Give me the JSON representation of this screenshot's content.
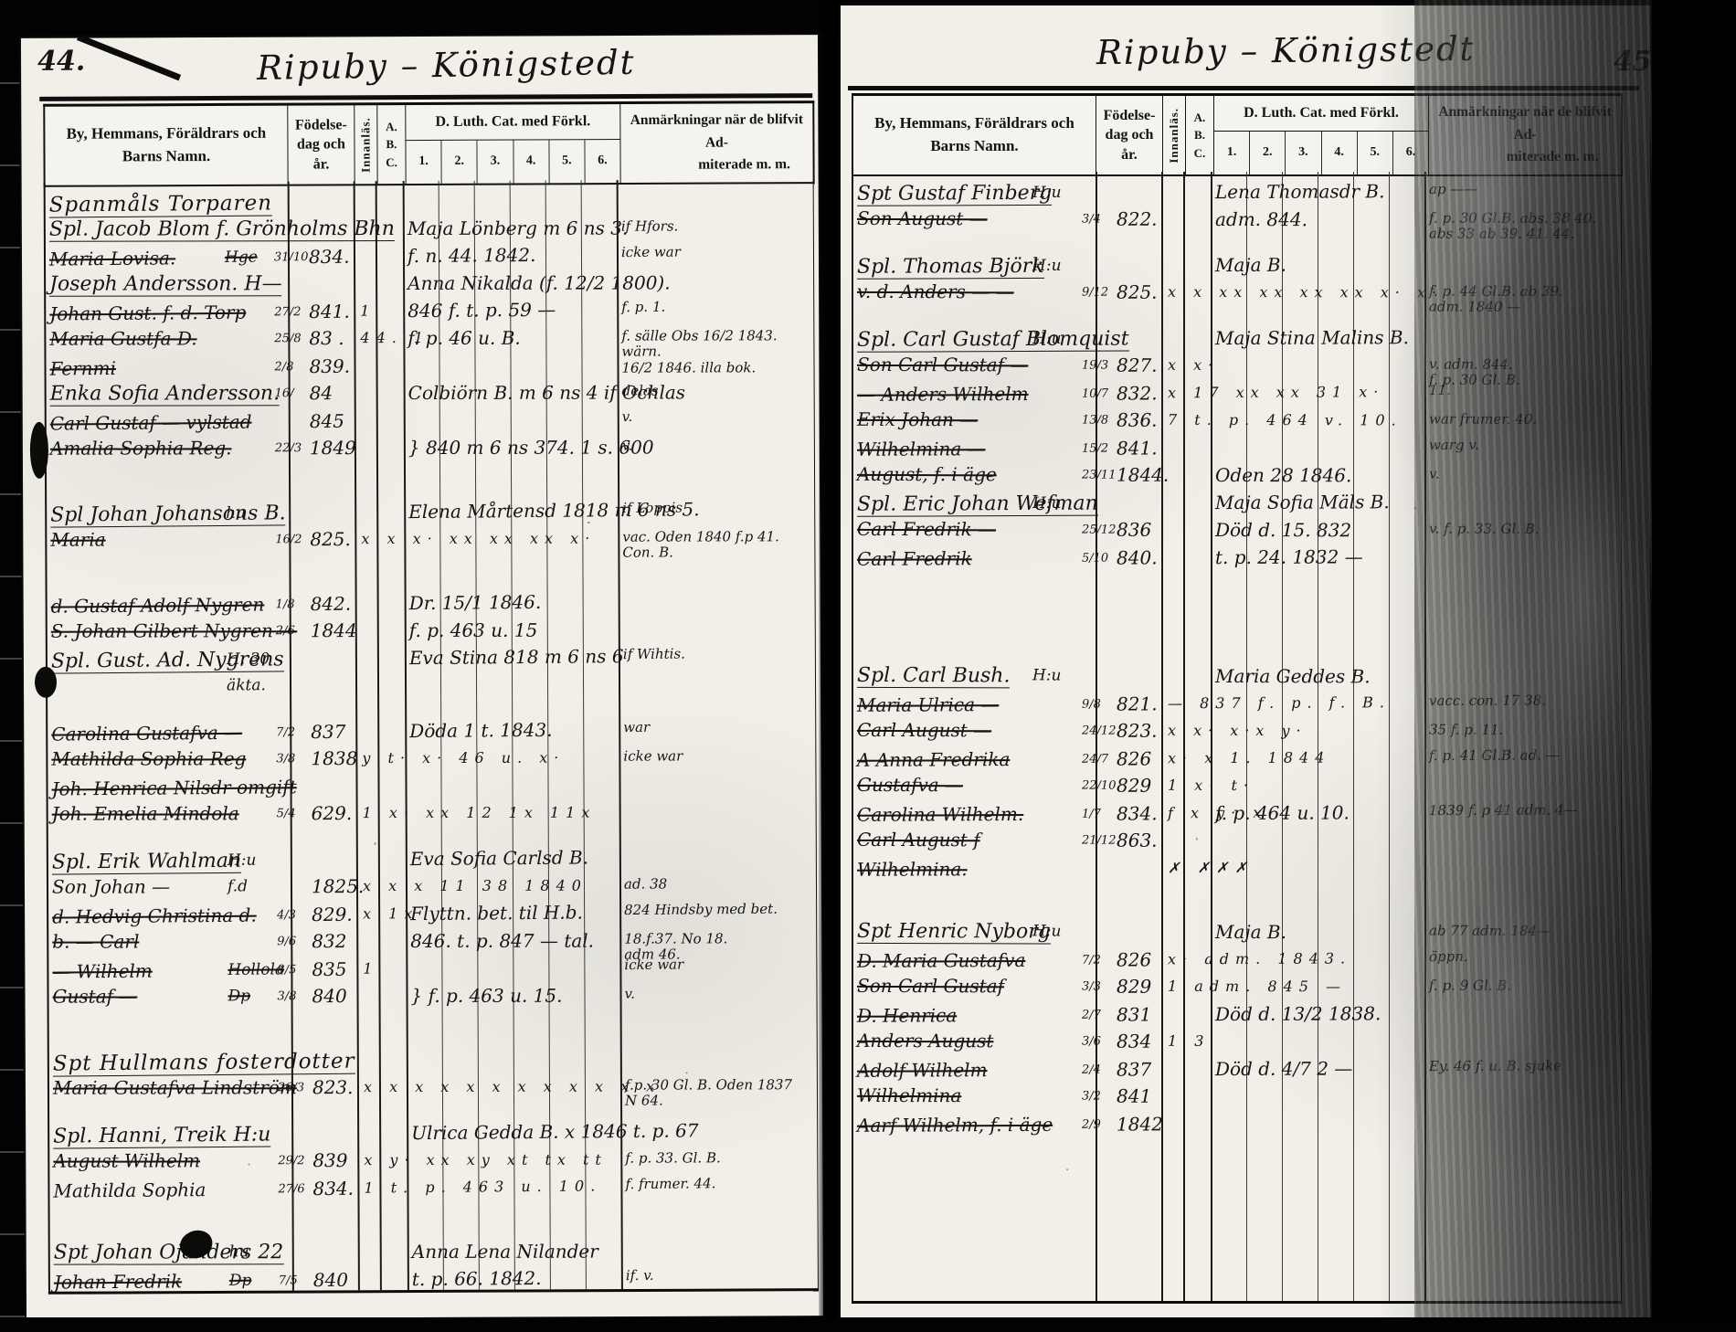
{
  "table_header": {
    "name1": "By, Hemmans, Föräldrars och",
    "name2": "Barns Namn.",
    "birth1": "Födelse-",
    "birth2": "dag och",
    "birth3": "år.",
    "innanlas": "Innanläs.",
    "abc": "A. B. C.",
    "cat": "D. Luth. Cat. med Förkl.",
    "cat_subs": [
      "1.",
      "2.",
      "3.",
      "4.",
      "5.",
      "6."
    ],
    "remarks1": "Anmärkningar när de blifvit Ad-",
    "remarks2": "miterade m. m."
  },
  "pages": {
    "left": {
      "number": "44.",
      "title": "Ripuby – Königstedt",
      "entries": [
        {
          "name": "Spanmåls Torparen",
          "cls": "h"
        },
        {
          "name": "Spl. Jacob Blom f. Grönholms Bhn",
          "cat": "Maja Lönberg m 6 ns 3.",
          "remarks": "if Hfors.",
          "cls": "u"
        },
        {
          "name": "Maria Lovisa.",
          "place": "Hge",
          "bday": "31/10",
          "byear": "834.",
          "cat": "f. n. 44. 1842.",
          "remarks": "icke war",
          "cls": "s"
        },
        {
          "name": "Joseph Andersson. H—",
          "cat": "Anna Nikalda (f. 12/2 1800).",
          "cls": "u"
        },
        {
          "name": "Johan Gust. f. d. Torp",
          "bday": "27/2",
          "byear": "841.",
          "marks": "1",
          "cat": "846 f. t. p. 59 —",
          "remarks": "f. p. 1.",
          "cls": "s"
        },
        {
          "name": "Maria Gustfa  D.",
          "bday": "25/8",
          "byear": "83 .",
          "marks": "44. 1",
          "cat": "f. p. 46  u. B.",
          "remarks": "f. sälle Obs 16/2 1843. wärn.\n16/2 1846. illa bok.",
          "cls": "s"
        },
        {
          "name": "Fernmi",
          "bday": "2/8",
          "byear": "839.",
          "cls": "s"
        },
        {
          "name": "Enka Sofia Andersson.",
          "bday": "16/",
          "byear": "84 ",
          "cat": "Colbiörn B. m 6 ns 4 if Ochlas",
          "remarks": "delas",
          "cls": "u"
        },
        {
          "name": "Carl Gustaf — vylstad",
          "byear": "845",
          "remarks": "v.",
          "cls": "s"
        },
        {
          "name": "Amalia Sophia Reg.",
          "bday": "22/3",
          "byear": "1849",
          "cat": "} 840 m 6 ns 374.  1 s. 600",
          "remarks": "v.",
          "cls": "s"
        },
        {
          "name": "Spl Johan Johansons B.",
          "place": "hu",
          "cat": "Elena Mårtensd 1818 m 6 ns 5.",
          "remarks": "if Loppis",
          "cls": "u",
          "gap": 2
        },
        {
          "name": "Maria",
          "bday": "16/2",
          "byear": "825.",
          "marks": "x x x· xx xx xx x·",
          "remarks": "vac. Oden 1840 f.p 41.\nCon. B.",
          "cls": "s"
        },
        {
          "name": "d. Gustaf Adolf Nygren",
          "bday": "1/8",
          "byear": "842.",
          "cat": "Dr. 15/1 1846.",
          "cls": "s",
          "gap": 2
        },
        {
          "name": "S. Johan Gilbert Nygren —",
          "bday": "2/6",
          "byear": "1844",
          "cat": "f. p. 463 u. 15",
          "cls": "s"
        },
        {
          "name": "Spl. Gust. Ad. Nygrens",
          "place": "H. 30",
          "cat": "Eva Stina 818 m 6 ns 6",
          "remarks": "if Wihtis.",
          "cls": "u"
        },
        {
          "place": "äkta."
        },
        {
          "name": "Carolina Gustafva —",
          "bday": "7/2",
          "byear": "837",
          "cat": "Döda 1 t. 1843.",
          "remarks": "war",
          "cls": "s",
          "gap": 1
        },
        {
          "name": "Mathilda Sophia Reg",
          "bday": "3/8",
          "byear": "1838",
          "marks": "y t· x· 46  u. x·",
          "remarks": "icke war",
          "cls": "s"
        },
        {
          "name": "Joh. Henrica Nilsdr omgift",
          "cls": "s"
        },
        {
          "name": "Joh. Emelia Mindola",
          "bday": "5/4",
          "byear": "629.",
          "marks": "1 x· xx 12 1x 11x",
          "cls": "s"
        },
        {
          "name": "Spl. Erik Wahlman",
          "place": "H:u",
          "cat": "Eva Sofia Carlsd B.",
          "cls": "u",
          "gap": 1
        },
        {
          "name": "Son Johan  —",
          "place": "f.d",
          "byear": "1825.",
          "marks": "x x x 11 38 1840",
          "remarks": "ad. 38"
        },
        {
          "name": "d. Hedvig Christina d.",
          "bday": "4/3",
          "byear": "829.",
          "marks": "x 1x",
          "cat": "Flyttn. bet. til H.b.",
          "remarks": "824 Hindsby med bet.",
          "cls": "s"
        },
        {
          "name": "b. — Carl",
          "bday": "9/6",
          "byear": "832",
          "cat": "846.  t. p.  847 — tal.",
          "remarks": "18.f.37. No 18.\nadm 46.",
          "cls": "s"
        },
        {
          "name": "—  Wilhelm",
          "place": "Hollola",
          "bday": "8/5",
          "byear": "835",
          "marks": "1",
          "remarks": "icke war",
          "cls": "s"
        },
        {
          "name": "Gustaf —",
          "place": "Dp",
          "bday": "3/8",
          "byear": "840",
          "cat": "} f. p. 463 u. 15.",
          "remarks": "v.",
          "cls": "s"
        },
        {
          "name": "Spt Hullmans fosterdotter",
          "cls": "h",
          "gap": 2
        },
        {
          "name": "Maria Gustafva Lindström",
          "bday": "26/3",
          "byear": "823.",
          "marks": "x x x x x x x x x x x x",
          "remarks": "f.p. 30 Gl. B. Oden 1837\nN 64.",
          "cls": "s"
        },
        {
          "name": "Spl. Hanni, Treik H:u",
          "cat": "Ulrica Gedda B.  x   1846 t. p. 67",
          "cls": "u",
          "gap": 1
        },
        {
          "name": "August Wilhelm",
          "bday": "29/2",
          "byear": "839",
          "marks": "x y· xx xy xt tx tt",
          "remarks": "f. p. 33. Gl. B.",
          "cls": "s"
        },
        {
          "name": "Mathilda Sophia",
          "bday": "27/6",
          "byear": "834.",
          "marks": "1  t. p. 463 u. 10.",
          "remarks": "f. frumer. 44."
        },
        {
          "name": "Spt Johan  Ojanders  22",
          "place": "hu",
          "cat": "Anna Lena Nilander",
          "cls": "u",
          "gap": 2
        },
        {
          "name": "Johan Fredrik",
          "place": "Dp",
          "bday": "7/5",
          "byear": "840",
          "cat": "t. p. 66.  1842.",
          "remarks": "if. v.",
          "cls": "s"
        }
      ]
    },
    "right": {
      "number": "45",
      "title": "Ripuby – Königstedt",
      "entries": [
        {
          "name": "Spt Gustaf Finberg",
          "place": "H:u",
          "cat": "Lena Thomasdr B.",
          "remarks": "ap ——",
          "cls": "u"
        },
        {
          "name": "Son August  —",
          "bday": "3/4",
          "byear": "822.",
          "cat": "adm. 844.",
          "remarks": "f. p. 30 Gl.B. abs. 38 40.\nabs 33 ab 39. 41. 44.",
          "cls": "s"
        },
        {
          "name": "Spl. Thomas Björk",
          "place": "H:u",
          "cat": "Maja B.",
          "cls": "u",
          "gap": 1
        },
        {
          "name": "v. d. Anders — —",
          "bday": "9/12",
          "byear": "825.",
          "marks": "x x xx xx xx xx x· x·",
          "remarks": "f. p. 44 Gl.B. ab 39.\nadm. 1840 —",
          "cls": "s"
        },
        {
          "name": "Spl. Carl Gustaf Blomquist",
          "place": "H:u",
          "cat": "Maja Stina Malins B.",
          "cls": "u",
          "gap": 1
        },
        {
          "name": "Son Carl Gustaf —",
          "bday": "19/3",
          "byear": "827.",
          "marks": "x x·",
          "remarks": "v.   adm. 844.\nf. p. 30 Gl. B.",
          "cls": "s"
        },
        {
          "name": "—  Anders Wilhelm",
          "bday": "10/7",
          "byear": "832.",
          "marks": "x 17 xx xx 31 x·",
          "remarks": "11.",
          "cls": "s"
        },
        {
          "name": "Erix Johan  —",
          "bday": "13/8",
          "byear": "836.",
          "marks": "7 t. p. 464 v. 10.",
          "remarks": "war frumer. 40.",
          "cls": "s"
        },
        {
          "name": "Wilhelmina  —",
          "bday": "15/2",
          "byear": "841.",
          "remarks": "warg   v.",
          "cls": "s"
        },
        {
          "name": "August, f. i äge",
          "bday": "23/11",
          "byear": "1844.",
          "cat": "Oden 28 1846.",
          "remarks": "v.",
          "cls": "s"
        },
        {
          "name": "Spl. Eric Johan Wefman",
          "place": "H:u",
          "cat": "Maja Sofia Mäls B.",
          "cls": "u"
        },
        {
          "name": "Carl Fredrik  —",
          "bday": "25/12",
          "byear": "836",
          "cat": "Död d. 15.  832",
          "remarks": "v. f. p. 33. Gl. B.",
          "cls": "s"
        },
        {
          "name": "Carl Fredrik",
          "bday": "5/10",
          "byear": "840.",
          "cat": "t. p. 24.   1832 —",
          "cls": "s"
        },
        {
          "name": "Spl. Carl Bush.",
          "place": "H:u",
          "cat": "Maria Geddes B.",
          "cls": "u",
          "gap": 5
        },
        {
          "name": "Maria Ulrica  —",
          "bday": "9/8",
          "byear": "821.",
          "marks": "—  837 f. p. f. B.",
          "remarks": "vacc. con. 17 38.",
          "cls": "s"
        },
        {
          "name": "Carl August  —",
          "bday": "24/12",
          "byear": "823.",
          "marks": "x x· x·x y·",
          "remarks": "35 f. p. 11.",
          "cls": "s"
        },
        {
          "name": "A Anna Fredrika",
          "bday": "24/7",
          "byear": "826",
          "marks": "x· x 1.  1844",
          "remarks": "f. p. 41 Gl.B. ad. —",
          "cls": "s"
        },
        {
          "name": "Gustafva  —",
          "bday": "22/10",
          "byear": "829",
          "marks": "1 x· t·",
          "cls": "s"
        },
        {
          "name": "Carolina Wilhelm.",
          "bday": "1/7",
          "byear": "834.",
          "marks": "f x y· x·",
          "cat": "f. p. 464 u. 10.",
          "remarks": "1839 f. p 41 adm. 4—",
          "cls": "s"
        },
        {
          "name": "Carl August f",
          "bday": "21/12",
          "byear": "863.",
          "cls": "s"
        },
        {
          "name": "Wilhelmina.",
          "marks": "✗ ✗✗✗",
          "cls": "s"
        },
        {
          "name": "Spt Henric  Nyborg",
          "place": "H:u",
          "cat": "Maja B.",
          "remarks": "ab 77 adm. 184—",
          "cls": "u",
          "gap": 2
        },
        {
          "name": "D. Maria Gustafva",
          "bday": "7/2",
          "byear": "826",
          "marks": "x·  adm. 1843.",
          "remarks": "öppn.",
          "cls": "s"
        },
        {
          "name": "Son Carl Gustaf",
          "bday": "3/3",
          "byear": "829",
          "marks": "1  adm. 845 —",
          "remarks": "f. p. 9 Gl. B.",
          "cls": "s"
        },
        {
          "name": "D. Henrica",
          "bday": "2/7",
          "byear": "831",
          "cat": "Död d. 13/2 1838.",
          "cls": "s"
        },
        {
          "name": "Anders August",
          "bday": "3/6",
          "byear": "834",
          "marks": "1 3",
          "cls": "s"
        },
        {
          "name": "Adolf Wilhelm",
          "bday": "2/4",
          "byear": "837",
          "cat": "Död d. 4/7 2 —",
          "remarks": "Ey. 46 f. u. B.  sjuke",
          "cls": "s"
        },
        {
          "name": "Wilhelmina",
          "bday": "3/2",
          "byear": "841",
          "cls": "s"
        },
        {
          "name": "Aarf Wilhelm, f. i äge",
          "bday": "2/9",
          "byear": "1842",
          "cls": "s"
        }
      ]
    }
  }
}
